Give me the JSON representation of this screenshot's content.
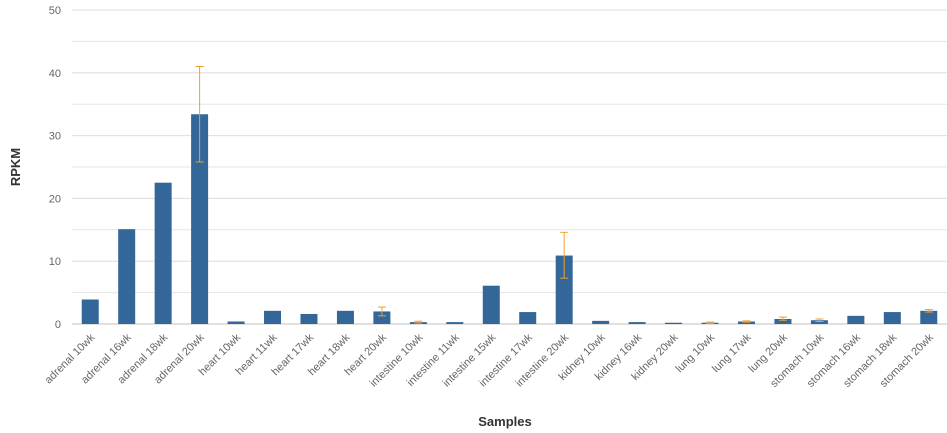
{
  "colors": {
    "bar": "#336699",
    "error_bar": "#f0a030",
    "grid": "#e6e6e6",
    "axis_text": "#666666",
    "title_text": "#333333"
  },
  "chart_data": {
    "type": "bar",
    "xlabel": "Samples",
    "ylabel": "RPKM",
    "ylim": [
      0,
      50
    ],
    "yticks": [
      0,
      10,
      20,
      30,
      40,
      50
    ],
    "grid": true,
    "categories": [
      "adrenal 10wk",
      "adrenal 16wk",
      "adrenal 18wk",
      "adrenal 20wk",
      "heart 10wk",
      "heart 11wk",
      "heart 17wk",
      "heart 18wk",
      "heart 20wk",
      "intestine 10wk",
      "intestine 11wk",
      "intestine 15wk",
      "intestine 17wk",
      "intestine 20wk",
      "kidney 10wk",
      "kidney 16wk",
      "kidney 20wk",
      "lung 10wk",
      "lung 17wk",
      "lung 20wk",
      "stomach 10wk",
      "stomach 16wk",
      "stomach 18wk",
      "stomach 20wk"
    ],
    "values": [
      3.9,
      15.1,
      22.5,
      33.4,
      0.4,
      2.1,
      1.6,
      2.1,
      2.0,
      0.3,
      0.3,
      6.1,
      1.9,
      10.9,
      0.5,
      0.3,
      0.2,
      0.2,
      0.4,
      0.8,
      0.6,
      1.3,
      1.9,
      2.1
    ],
    "error_low": [
      null,
      null,
      null,
      25.8,
      null,
      null,
      null,
      null,
      1.3,
      0.15,
      null,
      null,
      null,
      7.3,
      null,
      null,
      null,
      0.1,
      0.3,
      0.6,
      0.4,
      null,
      null,
      1.9
    ],
    "error_high": [
      null,
      null,
      null,
      41.0,
      null,
      null,
      null,
      null,
      2.7,
      0.45,
      null,
      null,
      null,
      14.6,
      null,
      null,
      null,
      0.3,
      0.5,
      1.1,
      0.8,
      null,
      null,
      2.3
    ]
  }
}
